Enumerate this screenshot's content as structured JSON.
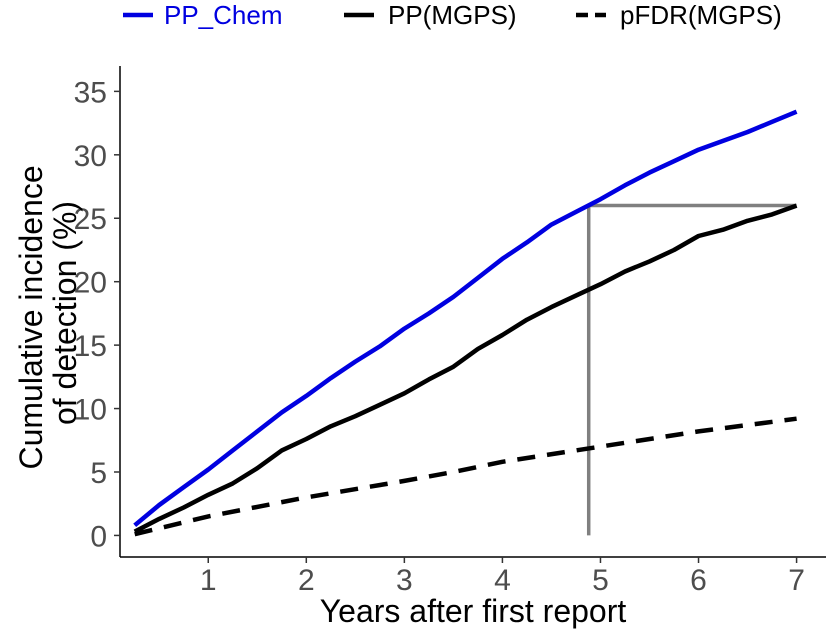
{
  "chart_data": {
    "type": "line",
    "xlabel": "Years after first report",
    "ylabel_lines": [
      "Cumulative incidence",
      "of detection (%)"
    ],
    "xlim": [
      0.1,
      7.3
    ],
    "ylim": [
      -1.7,
      37
    ],
    "x_ticks": [
      1,
      2,
      3,
      4,
      5,
      6,
      7
    ],
    "y_ticks": [
      0,
      5,
      10,
      15,
      20,
      25,
      30,
      35
    ],
    "grid": false,
    "legend_position": "top",
    "series": [
      {
        "name": "PP_Chem",
        "color": "#0000e0",
        "dash": "solid",
        "x": [
          0.25,
          0.5,
          0.75,
          1.0,
          1.25,
          1.5,
          1.75,
          2.0,
          2.25,
          2.5,
          2.75,
          3.0,
          3.25,
          3.5,
          3.75,
          4.0,
          4.25,
          4.5,
          4.75,
          5.0,
          5.25,
          5.5,
          5.75,
          6.0,
          6.25,
          6.5,
          6.75,
          7.0
        ],
        "y": [
          0.8,
          2.4,
          3.8,
          5.2,
          6.7,
          8.2,
          9.7,
          11.0,
          12.4,
          13.7,
          14.9,
          16.3,
          17.5,
          18.8,
          20.3,
          21.8,
          23.1,
          24.5,
          25.5,
          26.5,
          27.6,
          28.6,
          29.5,
          30.4,
          31.1,
          31.8,
          32.6,
          33.4
        ]
      },
      {
        "name": "PP(MGPS)",
        "color": "#000000",
        "dash": "solid",
        "x": [
          0.25,
          0.5,
          0.75,
          1.0,
          1.25,
          1.5,
          1.75,
          2.0,
          2.25,
          2.5,
          2.75,
          3.0,
          3.25,
          3.5,
          3.75,
          4.0,
          4.25,
          4.5,
          4.75,
          5.0,
          5.25,
          5.5,
          5.75,
          6.0,
          6.25,
          6.5,
          6.75,
          7.0
        ],
        "y": [
          0.3,
          1.3,
          2.2,
          3.2,
          4.1,
          5.3,
          6.7,
          7.6,
          8.6,
          9.4,
          10.3,
          11.2,
          12.3,
          13.3,
          14.7,
          15.8,
          17.0,
          18.0,
          18.9,
          19.8,
          20.8,
          21.6,
          22.5,
          23.6,
          24.1,
          24.8,
          25.3,
          26.0
        ]
      },
      {
        "name": "pFDR(MGPS)",
        "color": "#000000",
        "dash": "dashed",
        "x": [
          0.25,
          1.0,
          2.0,
          3.0,
          3.5,
          4.0,
          5.0,
          6.0,
          7.0
        ],
        "y": [
          0.1,
          1.5,
          3.0,
          4.3,
          5.0,
          5.8,
          7.0,
          8.2,
          9.2
        ]
      }
    ],
    "reference_lines": [
      {
        "color": "#808080",
        "x": [
          4.88,
          4.88
        ],
        "y": [
          0,
          26.0
        ]
      },
      {
        "color": "#808080",
        "x": [
          4.88,
          7.0
        ],
        "y": [
          26.0,
          26.0
        ]
      }
    ]
  }
}
